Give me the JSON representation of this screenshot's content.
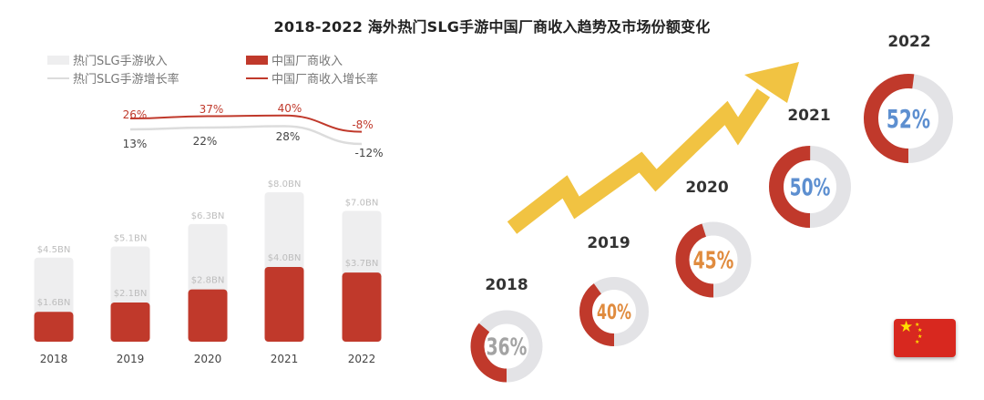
{
  "title": "2018-2022 海外热门SLG手游中国厂商收入趋势及市场份额变化",
  "legend": {
    "hot_revenue": "热门SLG手游收入",
    "china_revenue": "中国厂商收入",
    "hot_growth": "热门SLG手游增长率",
    "china_growth": "中国厂商收入增长率"
  },
  "colors": {
    "hot": "#eeeeef",
    "china": "#c0392b",
    "hot_line": "#dcdcdc",
    "arrow": "#f1c342",
    "ring_bg": "#e3e3e6",
    "ring_fg": "#c0392b"
  },
  "chart_data": [
    {
      "type": "bar",
      "categories": [
        "2018",
        "2019",
        "2020",
        "2021",
        "2022"
      ],
      "series": [
        {
          "name": "热门SLG手游收入",
          "values": [
            4.5,
            5.1,
            6.3,
            8.0,
            7.0
          ],
          "labels": [
            "$4.5BN",
            "$5.1BN",
            "$6.3BN",
            "$8.0BN",
            "$7.0BN"
          ]
        },
        {
          "name": "中国厂商收入",
          "values": [
            1.6,
            2.1,
            2.8,
            4.0,
            3.7
          ],
          "labels": [
            "$1.6BN",
            "$2.1BN",
            "$2.8BN",
            "$4.0BN",
            "$3.7BN"
          ]
        }
      ],
      "unit": "$BN",
      "ylim": [
        0,
        8
      ]
    },
    {
      "type": "line",
      "x": [
        "2019",
        "2020",
        "2021",
        "2022"
      ],
      "series": [
        {
          "name": "热门SLG手游增长率",
          "values": [
            13,
            22,
            28,
            -12
          ],
          "labels": [
            "13%",
            "22%",
            "28%",
            "-12%"
          ]
        },
        {
          "name": "中国厂商收入增长率",
          "values": [
            26,
            37,
            40,
            -8
          ],
          "labels": [
            "26%",
            "37%",
            "40%",
            "-8%"
          ]
        }
      ],
      "unit": "%"
    },
    {
      "type": "pie",
      "categories": [
        "2018",
        "2019",
        "2020",
        "2021",
        "2022"
      ],
      "values": [
        36,
        40,
        45,
        50,
        52
      ],
      "labels": [
        "36%",
        "40%",
        "45%",
        "50%",
        "52%"
      ],
      "label_colors": [
        "#a3a3a3",
        "#e08b3e",
        "#e08b3e",
        "#5d8fd0",
        "#5d8fd0"
      ]
    }
  ]
}
